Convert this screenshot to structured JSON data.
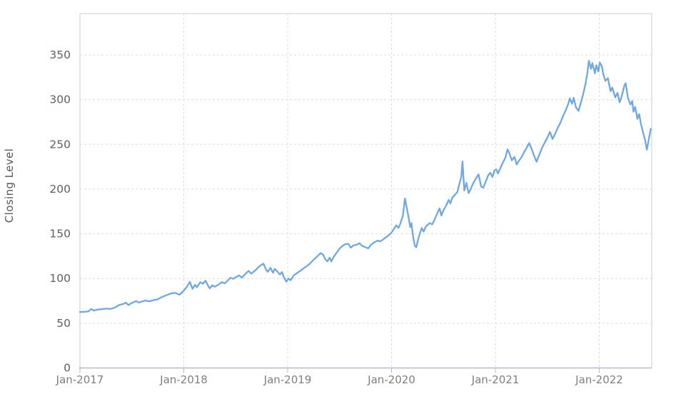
{
  "chart_data": {
    "type": "line",
    "title": "",
    "xlabel": "",
    "ylabel": "Closing Level",
    "legend": "none",
    "grid": "dashed",
    "ylim": [
      0,
      396
    ],
    "y_ticks": [
      0,
      50,
      100,
      150,
      200,
      250,
      300,
      350
    ],
    "x_ticks": [
      {
        "month": 0,
        "label": "Jan-2017"
      },
      {
        "month": 12,
        "label": "Jan-2018"
      },
      {
        "month": 24,
        "label": "Jan-2019"
      },
      {
        "month": 36,
        "label": "Jan-2020"
      },
      {
        "month": 48,
        "label": "Jan-2021"
      },
      {
        "month": 60,
        "label": "Jan-2022"
      }
    ],
    "x_range_months": [
      0,
      66.1
    ],
    "series": [
      {
        "name": "Closing Level",
        "color": "#6fa8e1",
        "points": [
          [
            0,
            62.5
          ],
          [
            0.5,
            62.8
          ],
          [
            1,
            63.3
          ],
          [
            1.3,
            66
          ],
          [
            1.6,
            64.2
          ],
          [
            2,
            65.2
          ],
          [
            2.5,
            65.8
          ],
          [
            3,
            66.3
          ],
          [
            3.5,
            66
          ],
          [
            4,
            67.3
          ],
          [
            4.5,
            70.3
          ],
          [
            5,
            71.5
          ],
          [
            5.3,
            73
          ],
          [
            5.6,
            70.3
          ],
          [
            6,
            72.8
          ],
          [
            6.5,
            74.8
          ],
          [
            6.8,
            73.2
          ],
          [
            7.2,
            74.5
          ],
          [
            7.6,
            75.4
          ],
          [
            8,
            74.4
          ],
          [
            8.5,
            75.8
          ],
          [
            9,
            76.8
          ],
          [
            9.5,
            79.5
          ],
          [
            10,
            81.5
          ],
          [
            10.5,
            83.2
          ],
          [
            11,
            84
          ],
          [
            11.5,
            81.8
          ],
          [
            12,
            86.5
          ],
          [
            12.4,
            91.5
          ],
          [
            12.7,
            96.3
          ],
          [
            13,
            88.5
          ],
          [
            13.3,
            93
          ],
          [
            13.5,
            90.2
          ],
          [
            13.9,
            95.8
          ],
          [
            14.2,
            94.2
          ],
          [
            14.5,
            97.6
          ],
          [
            14.8,
            92
          ],
          [
            15,
            89
          ],
          [
            15.3,
            92.5
          ],
          [
            15.6,
            90.8
          ],
          [
            16,
            93.2
          ],
          [
            16.4,
            96
          ],
          [
            16.7,
            94.5
          ],
          [
            17,
            97
          ],
          [
            17.4,
            101
          ],
          [
            17.7,
            99.6
          ],
          [
            18,
            101.5
          ],
          [
            18.4,
            103.5
          ],
          [
            18.7,
            101
          ],
          [
            19,
            104
          ],
          [
            19.3,
            107
          ],
          [
            19.5,
            108.5
          ],
          [
            19.8,
            105.5
          ],
          [
            20,
            107
          ],
          [
            20.4,
            110.5
          ],
          [
            20.7,
            113.5
          ],
          [
            21,
            115.5
          ],
          [
            21.2,
            116.5
          ],
          [
            21.5,
            110
          ],
          [
            21.7,
            107.5
          ],
          [
            22,
            112
          ],
          [
            22.3,
            106.5
          ],
          [
            22.5,
            110.8
          ],
          [
            22.8,
            108
          ],
          [
            23.1,
            104.5
          ],
          [
            23.35,
            107.2
          ],
          [
            23.6,
            100.5
          ],
          [
            23.85,
            96.5
          ],
          [
            24.1,
            100
          ],
          [
            24.35,
            98
          ],
          [
            24.7,
            103.5
          ],
          [
            25,
            105.5
          ],
          [
            25.5,
            109
          ],
          [
            26,
            112.5
          ],
          [
            26.5,
            116
          ],
          [
            27,
            121
          ],
          [
            27.4,
            124.5
          ],
          [
            27.8,
            128.5
          ],
          [
            28.1,
            126.5
          ],
          [
            28.35,
            121.5
          ],
          [
            28.6,
            119.2
          ],
          [
            28.85,
            123.5
          ],
          [
            29.05,
            119
          ],
          [
            29.3,
            124
          ],
          [
            29.6,
            128
          ],
          [
            30,
            133.5
          ],
          [
            30.4,
            137
          ],
          [
            30.7,
            138.5
          ],
          [
            31,
            138.8
          ],
          [
            31.3,
            134.5
          ],
          [
            31.6,
            137.2
          ],
          [
            32,
            137.8
          ],
          [
            32.3,
            139.5
          ],
          [
            32.6,
            136.5
          ],
          [
            33,
            135
          ],
          [
            33.3,
            133.8
          ],
          [
            33.6,
            137.5
          ],
          [
            34,
            140.5
          ],
          [
            34.4,
            142.5
          ],
          [
            34.7,
            141.5
          ],
          [
            35,
            143.5
          ],
          [
            35.4,
            146.5
          ],
          [
            35.7,
            148.5
          ],
          [
            36,
            151.5
          ],
          [
            36.3,
            156
          ],
          [
            36.55,
            159.5
          ],
          [
            36.8,
            156.5
          ],
          [
            37,
            161
          ],
          [
            37.3,
            170
          ],
          [
            37.55,
            189.5
          ],
          [
            37.8,
            177
          ],
          [
            38,
            166.5
          ],
          [
            38.15,
            157.5
          ],
          [
            38.3,
            162
          ],
          [
            38.5,
            146
          ],
          [
            38.7,
            136.5
          ],
          [
            38.85,
            135
          ],
          [
            39.05,
            143
          ],
          [
            39.3,
            151
          ],
          [
            39.5,
            156.5
          ],
          [
            39.7,
            152.5
          ],
          [
            40,
            158.5
          ],
          [
            40.4,
            162
          ],
          [
            40.7,
            160.5
          ],
          [
            41,
            166.5
          ],
          [
            41.35,
            174.5
          ],
          [
            41.55,
            178.5
          ],
          [
            41.75,
            170.5
          ],
          [
            42,
            176.5
          ],
          [
            42.3,
            181.5
          ],
          [
            42.6,
            188
          ],
          [
            42.8,
            184
          ],
          [
            43,
            190
          ],
          [
            43.3,
            193.5
          ],
          [
            43.6,
            196.5
          ],
          [
            43.85,
            206.5
          ],
          [
            44.05,
            213
          ],
          [
            44.2,
            231
          ],
          [
            44.4,
            198.5
          ],
          [
            44.65,
            207
          ],
          [
            44.9,
            195.5
          ],
          [
            45.1,
            199
          ],
          [
            45.4,
            206
          ],
          [
            45.75,
            212
          ],
          [
            46.05,
            216.5
          ],
          [
            46.35,
            203
          ],
          [
            46.6,
            201.5
          ],
          [
            46.9,
            209
          ],
          [
            47.15,
            215
          ],
          [
            47.4,
            218.5
          ],
          [
            47.65,
            213.5
          ],
          [
            47.9,
            221
          ],
          [
            48.1,
            222
          ],
          [
            48.3,
            217.5
          ],
          [
            48.6,
            224
          ],
          [
            48.85,
            229.5
          ],
          [
            49.15,
            235
          ],
          [
            49.4,
            244.5
          ],
          [
            49.6,
            240.5
          ],
          [
            49.9,
            232
          ],
          [
            50.2,
            236
          ],
          [
            50.45,
            227.5
          ],
          [
            50.7,
            231.5
          ],
          [
            51,
            235.5
          ],
          [
            51.3,
            241
          ],
          [
            51.6,
            246
          ],
          [
            51.9,
            251.5
          ],
          [
            52.2,
            244.5
          ],
          [
            52.5,
            236.5
          ],
          [
            52.75,
            230.5
          ],
          [
            53.1,
            239
          ],
          [
            53.4,
            246.5
          ],
          [
            53.7,
            252
          ],
          [
            54,
            257.5
          ],
          [
            54.3,
            264
          ],
          [
            54.6,
            256
          ],
          [
            54.9,
            262
          ],
          [
            55.2,
            268.5
          ],
          [
            55.5,
            274
          ],
          [
            55.8,
            281.5
          ],
          [
            56.1,
            287.5
          ],
          [
            56.4,
            295
          ],
          [
            56.6,
            301.5
          ],
          [
            56.85,
            295.5
          ],
          [
            57.05,
            302
          ],
          [
            57.3,
            291.5
          ],
          [
            57.6,
            287.5
          ],
          [
            57.85,
            296
          ],
          [
            58.1,
            305
          ],
          [
            58.35,
            315
          ],
          [
            58.6,
            328
          ],
          [
            58.8,
            343.5
          ],
          [
            59.05,
            334.5
          ],
          [
            59.2,
            341
          ],
          [
            59.5,
            329.5
          ],
          [
            59.65,
            338.5
          ],
          [
            59.9,
            331.5
          ],
          [
            60.05,
            341.5
          ],
          [
            60.3,
            337.5
          ],
          [
            60.45,
            329
          ],
          [
            60.7,
            321
          ],
          [
            61,
            324
          ],
          [
            61.3,
            309.5
          ],
          [
            61.5,
            313.5
          ],
          [
            61.85,
            302.5
          ],
          [
            62.1,
            307.5
          ],
          [
            62.35,
            297
          ],
          [
            62.6,
            304
          ],
          [
            62.9,
            316
          ],
          [
            63.05,
            318.5
          ],
          [
            63.3,
            302.5
          ],
          [
            63.6,
            294.5
          ],
          [
            63.8,
            298.5
          ],
          [
            63.95,
            286.5
          ],
          [
            64.15,
            292
          ],
          [
            64.4,
            278.5
          ],
          [
            64.6,
            284
          ],
          [
            64.85,
            271.5
          ],
          [
            65.1,
            262
          ],
          [
            65.3,
            254.5
          ],
          [
            65.5,
            244
          ],
          [
            65.75,
            257
          ],
          [
            65.95,
            267.5
          ]
        ]
      }
    ]
  },
  "colors": {
    "background": "#ffffff",
    "line": "#6fa8e1",
    "grid": "#dcdcdc",
    "border": "#cbcbcb",
    "axis_line": "#aebdd2",
    "tick_mark": "#aebdd2",
    "y_tick_label": "#606060",
    "x_tick_label": "#7f7f82",
    "axis_title": "#58585c"
  }
}
